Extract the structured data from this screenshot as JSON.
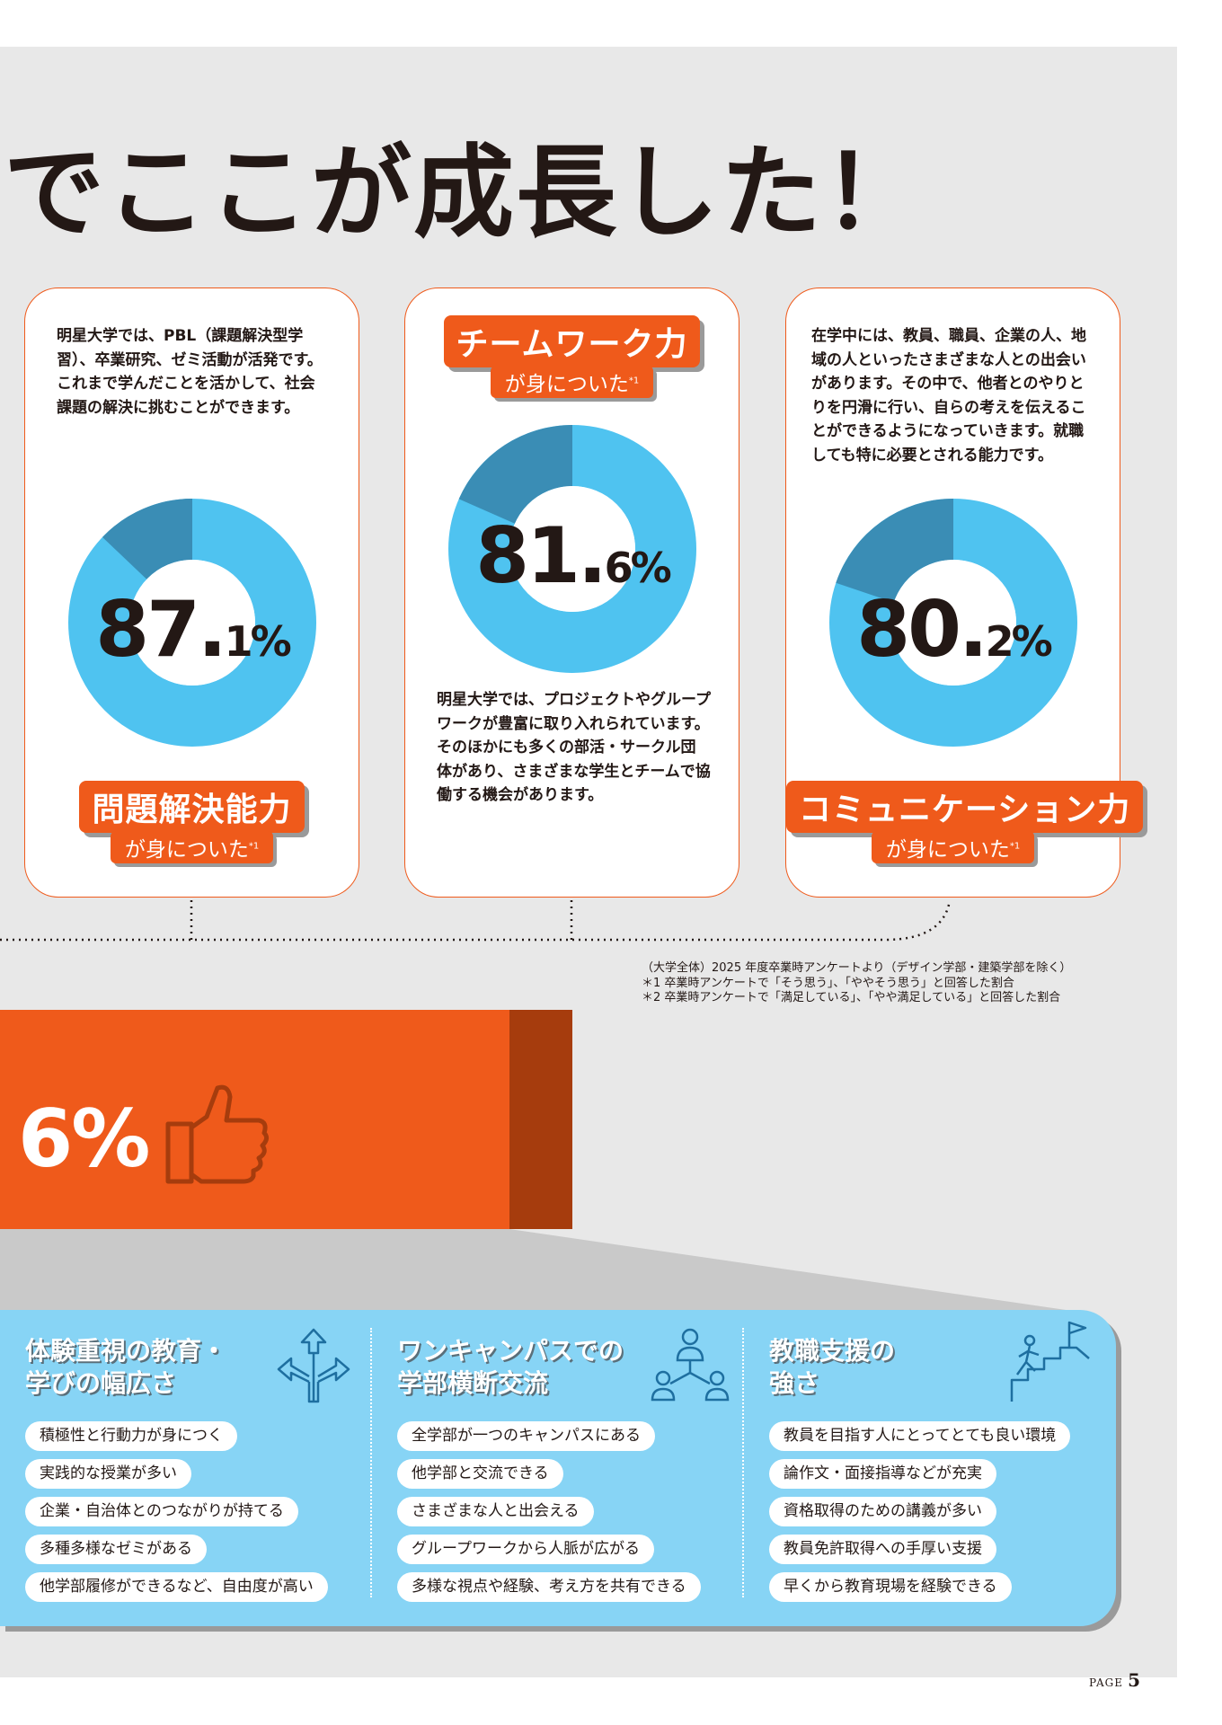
{
  "headline": "でここが成長した！",
  "cards": [
    {
      "text": "明星大学では、PBL（課題解決型学習）、卒業研究、ゼミ活動が活発です。これまで学んだことを活かして、社会課題の解決に挑むことができます。",
      "value": 87.1,
      "pct_big": "87.",
      "pct_small": "1%",
      "label": "問題解決能力",
      "sublabel": "が身についた",
      "note_mark": "*1"
    },
    {
      "text": "明星大学では、プロジェクトやグループワークが豊富に取り入れられています。そのほかにも多くの部活・サークル団体があり、さまざまな学生とチームで協働する機会があります。",
      "value": 81.6,
      "pct_big": "81.",
      "pct_small": "6%",
      "label": "チームワーク力",
      "sublabel": "が身についた",
      "note_mark": "*1"
    },
    {
      "text": "在学中には、教員、職員、企業の人、地域の人といったさまざまな人との出会いがあります。その中で、他者とのやりとりを円滑に行い、自らの考えを伝えることができるようになっていきます。就職しても特に必要とされる能力です。",
      "value": 80.2,
      "pct_big": "80.",
      "pct_small": "2%",
      "label": "コミュニケーション力",
      "sublabel": "が身についた",
      "note_mark": "*1"
    }
  ],
  "notes": [
    "（大学全体）2025 年度卒業時アンケートより（デザイン学部・建築学部を除く）",
    "＊1 卒業時アンケートで「そう思う」、「ややそう思う」と回答した割合",
    "＊2 卒業時アンケートで「満足している」、「やや満足している」と回答した割合"
  ],
  "banner": {
    "pct": "6%",
    "icon": "thumbs-up-icon"
  },
  "columns": [
    {
      "title_1": "体験重視の教育・",
      "title_2": "学びの幅広さ",
      "icon": "branching-arrows-icon",
      "items": [
        "積極性と行動力が身につく",
        "実践的な授業が多い",
        "企業・自治体とのつながりが持てる",
        "多種多様なゼミがある",
        "他学部履修ができるなど、自由度が高い"
      ]
    },
    {
      "title_1": "ワンキャンパスでの",
      "title_2": "学部横断交流",
      "icon": "people-network-icon",
      "items": [
        "全学部が一つのキャンパスにある",
        "他学部と交流できる",
        "さまざまな人と出会える",
        "グループワークから人脈が広がる",
        "多様な視点や経験、考え方を共有できる"
      ]
    },
    {
      "title_1": "教職支援の",
      "title_2": "強さ",
      "icon": "climbing-stairs-flag-icon",
      "items": [
        "教員を目指す人にとってとても良い環境",
        "論作文・面接指導などが充実",
        "資格取得のための講義が多い",
        "教員免許取得への手厚い支援",
        "早くから教育現場を経験できる"
      ]
    }
  ],
  "page": {
    "label": "PAGE",
    "number": "5"
  },
  "colors": {
    "orange": "#ef5a1b",
    "dark_orange": "#a63c0d",
    "donut_light": "#4fc3f0",
    "donut_dark": "#3a8db5",
    "blue_box": "#87d4f5"
  }
}
